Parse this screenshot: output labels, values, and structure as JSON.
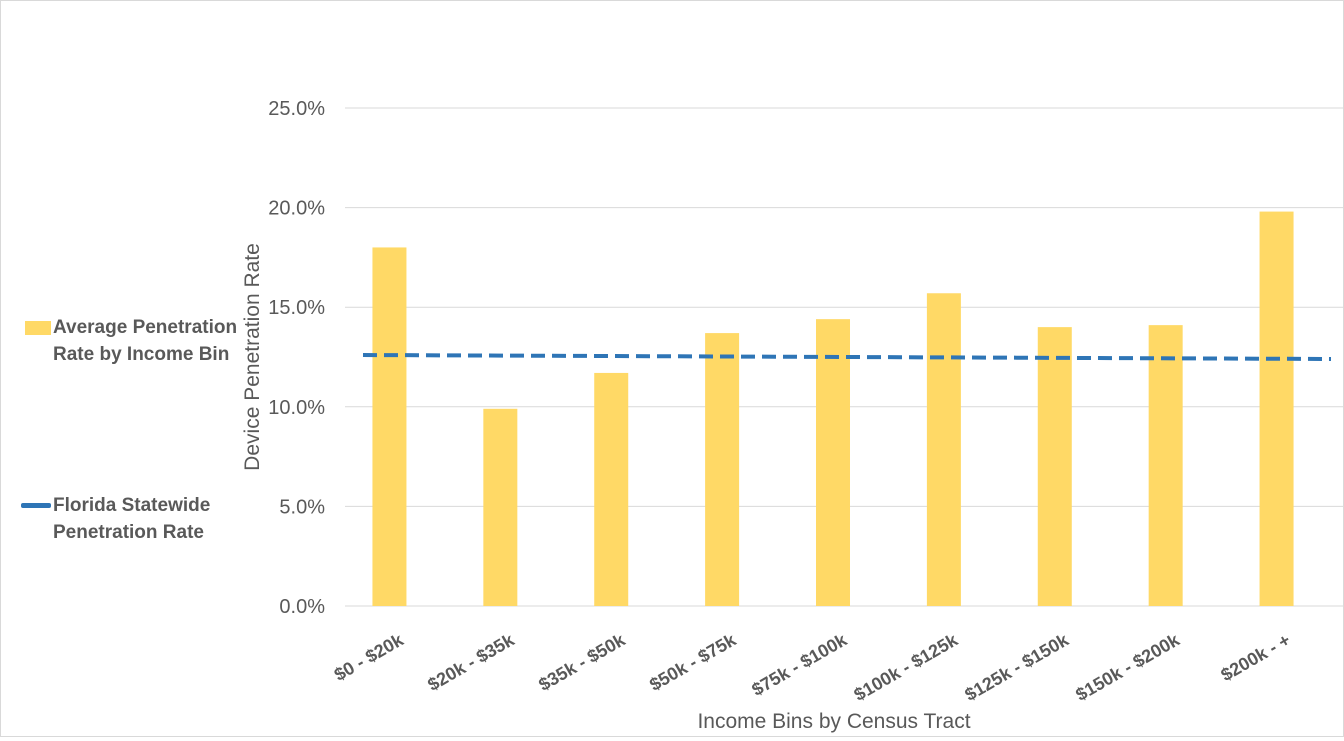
{
  "chart_data": {
    "type": "bar",
    "title": "",
    "xlabel": "Income Bins by Census Tract",
    "ylabel": "Device Penetration Rate",
    "categories": [
      "$0 - $20k",
      "$20k - $35k",
      "$35k - $50k",
      "$50k - $75k",
      "$75k - $100k",
      "$100k - $125k",
      "$125k - $150k",
      "$150k - $200k",
      "$200k - +"
    ],
    "series": [
      {
        "name": "Average Penetration Rate by Income Bin",
        "values": [
          18.0,
          9.9,
          11.7,
          13.7,
          14.4,
          15.7,
          14.0,
          14.1,
          19.8
        ],
        "color": "#ffd966"
      }
    ],
    "reference_line": {
      "name": "Florida Statewide Penetration Rate",
      "start": 12.6,
      "end": 12.4,
      "style": "dashed",
      "color": "#2e75b6"
    },
    "ylim": [
      0,
      25
    ],
    "yticks": [
      0,
      5,
      10,
      15,
      20,
      25
    ],
    "ytick_labels": [
      "0.0%",
      "5.0%",
      "10.0%",
      "15.0%",
      "20.0%",
      "25.0%"
    ],
    "grid": true,
    "legend_position": "left"
  },
  "legend": {
    "bar_label": "Average Penetration Rate by Income Bin",
    "line_label": "Florida Statewide Penetration Rate"
  }
}
